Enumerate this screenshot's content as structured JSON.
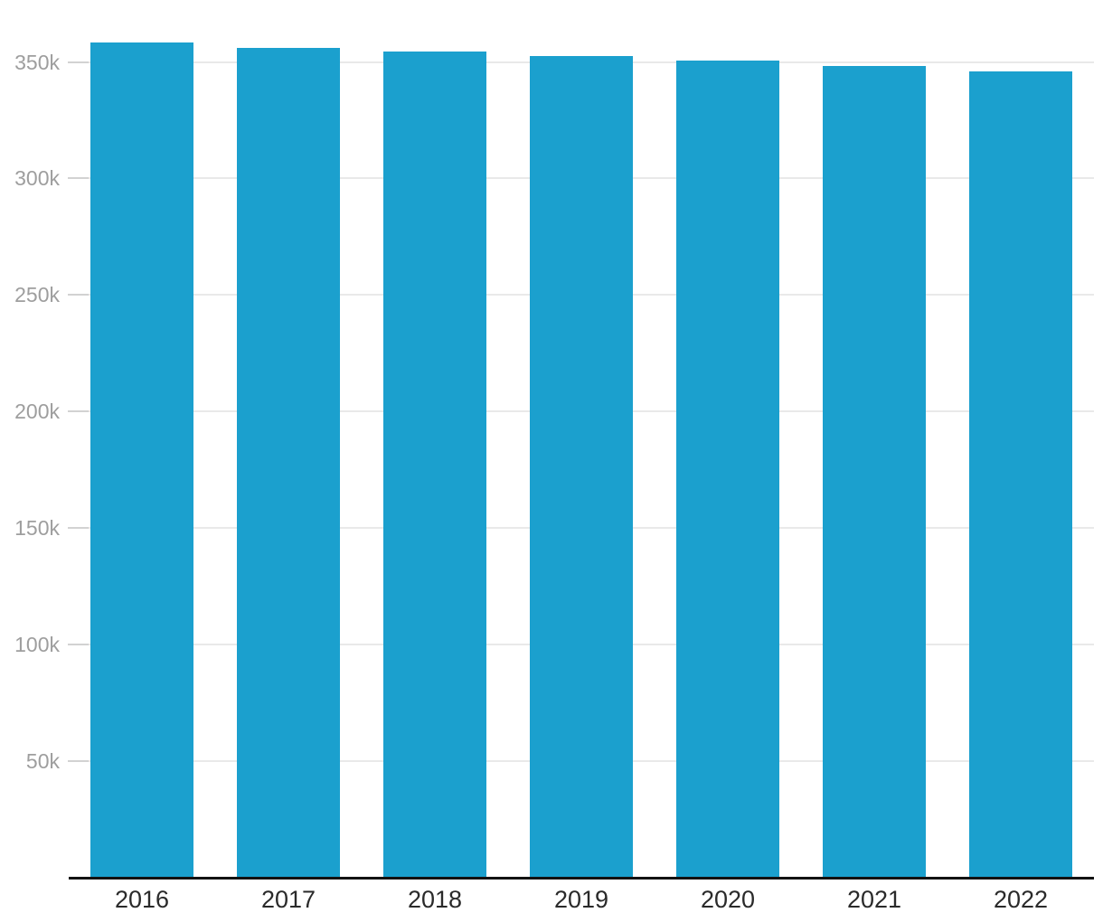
{
  "chart_data": {
    "type": "bar",
    "title": "",
    "xlabel": "",
    "ylabel": "",
    "categories": [
      "2016",
      "2017",
      "2018",
      "2019",
      "2020",
      "2021",
      "2022"
    ],
    "values": [
      358400,
      356100,
      354400,
      352600,
      350600,
      348200,
      345900
    ],
    "ylim": [
      0,
      376000
    ],
    "ytick_interval": 50000,
    "yticks": [
      {
        "value": 50000,
        "label": "50k"
      },
      {
        "value": 100000,
        "label": "100k"
      },
      {
        "value": 150000,
        "label": "150k"
      },
      {
        "value": 200000,
        "label": "200k"
      },
      {
        "value": 250000,
        "label": "250k"
      },
      {
        "value": 300000,
        "label": "300k"
      },
      {
        "value": 350000,
        "label": "350k"
      }
    ],
    "grid": "horizontal-only",
    "legend": false
  },
  "colors": {
    "bar": "#1BA0CE",
    "gridline": "#E9E9E9",
    "tick": "#D2D2D2",
    "y_label": "#9E9E9E",
    "x_label": "#2A2A2A",
    "axis_line": "#121212",
    "background": "#FFFFFF"
  }
}
